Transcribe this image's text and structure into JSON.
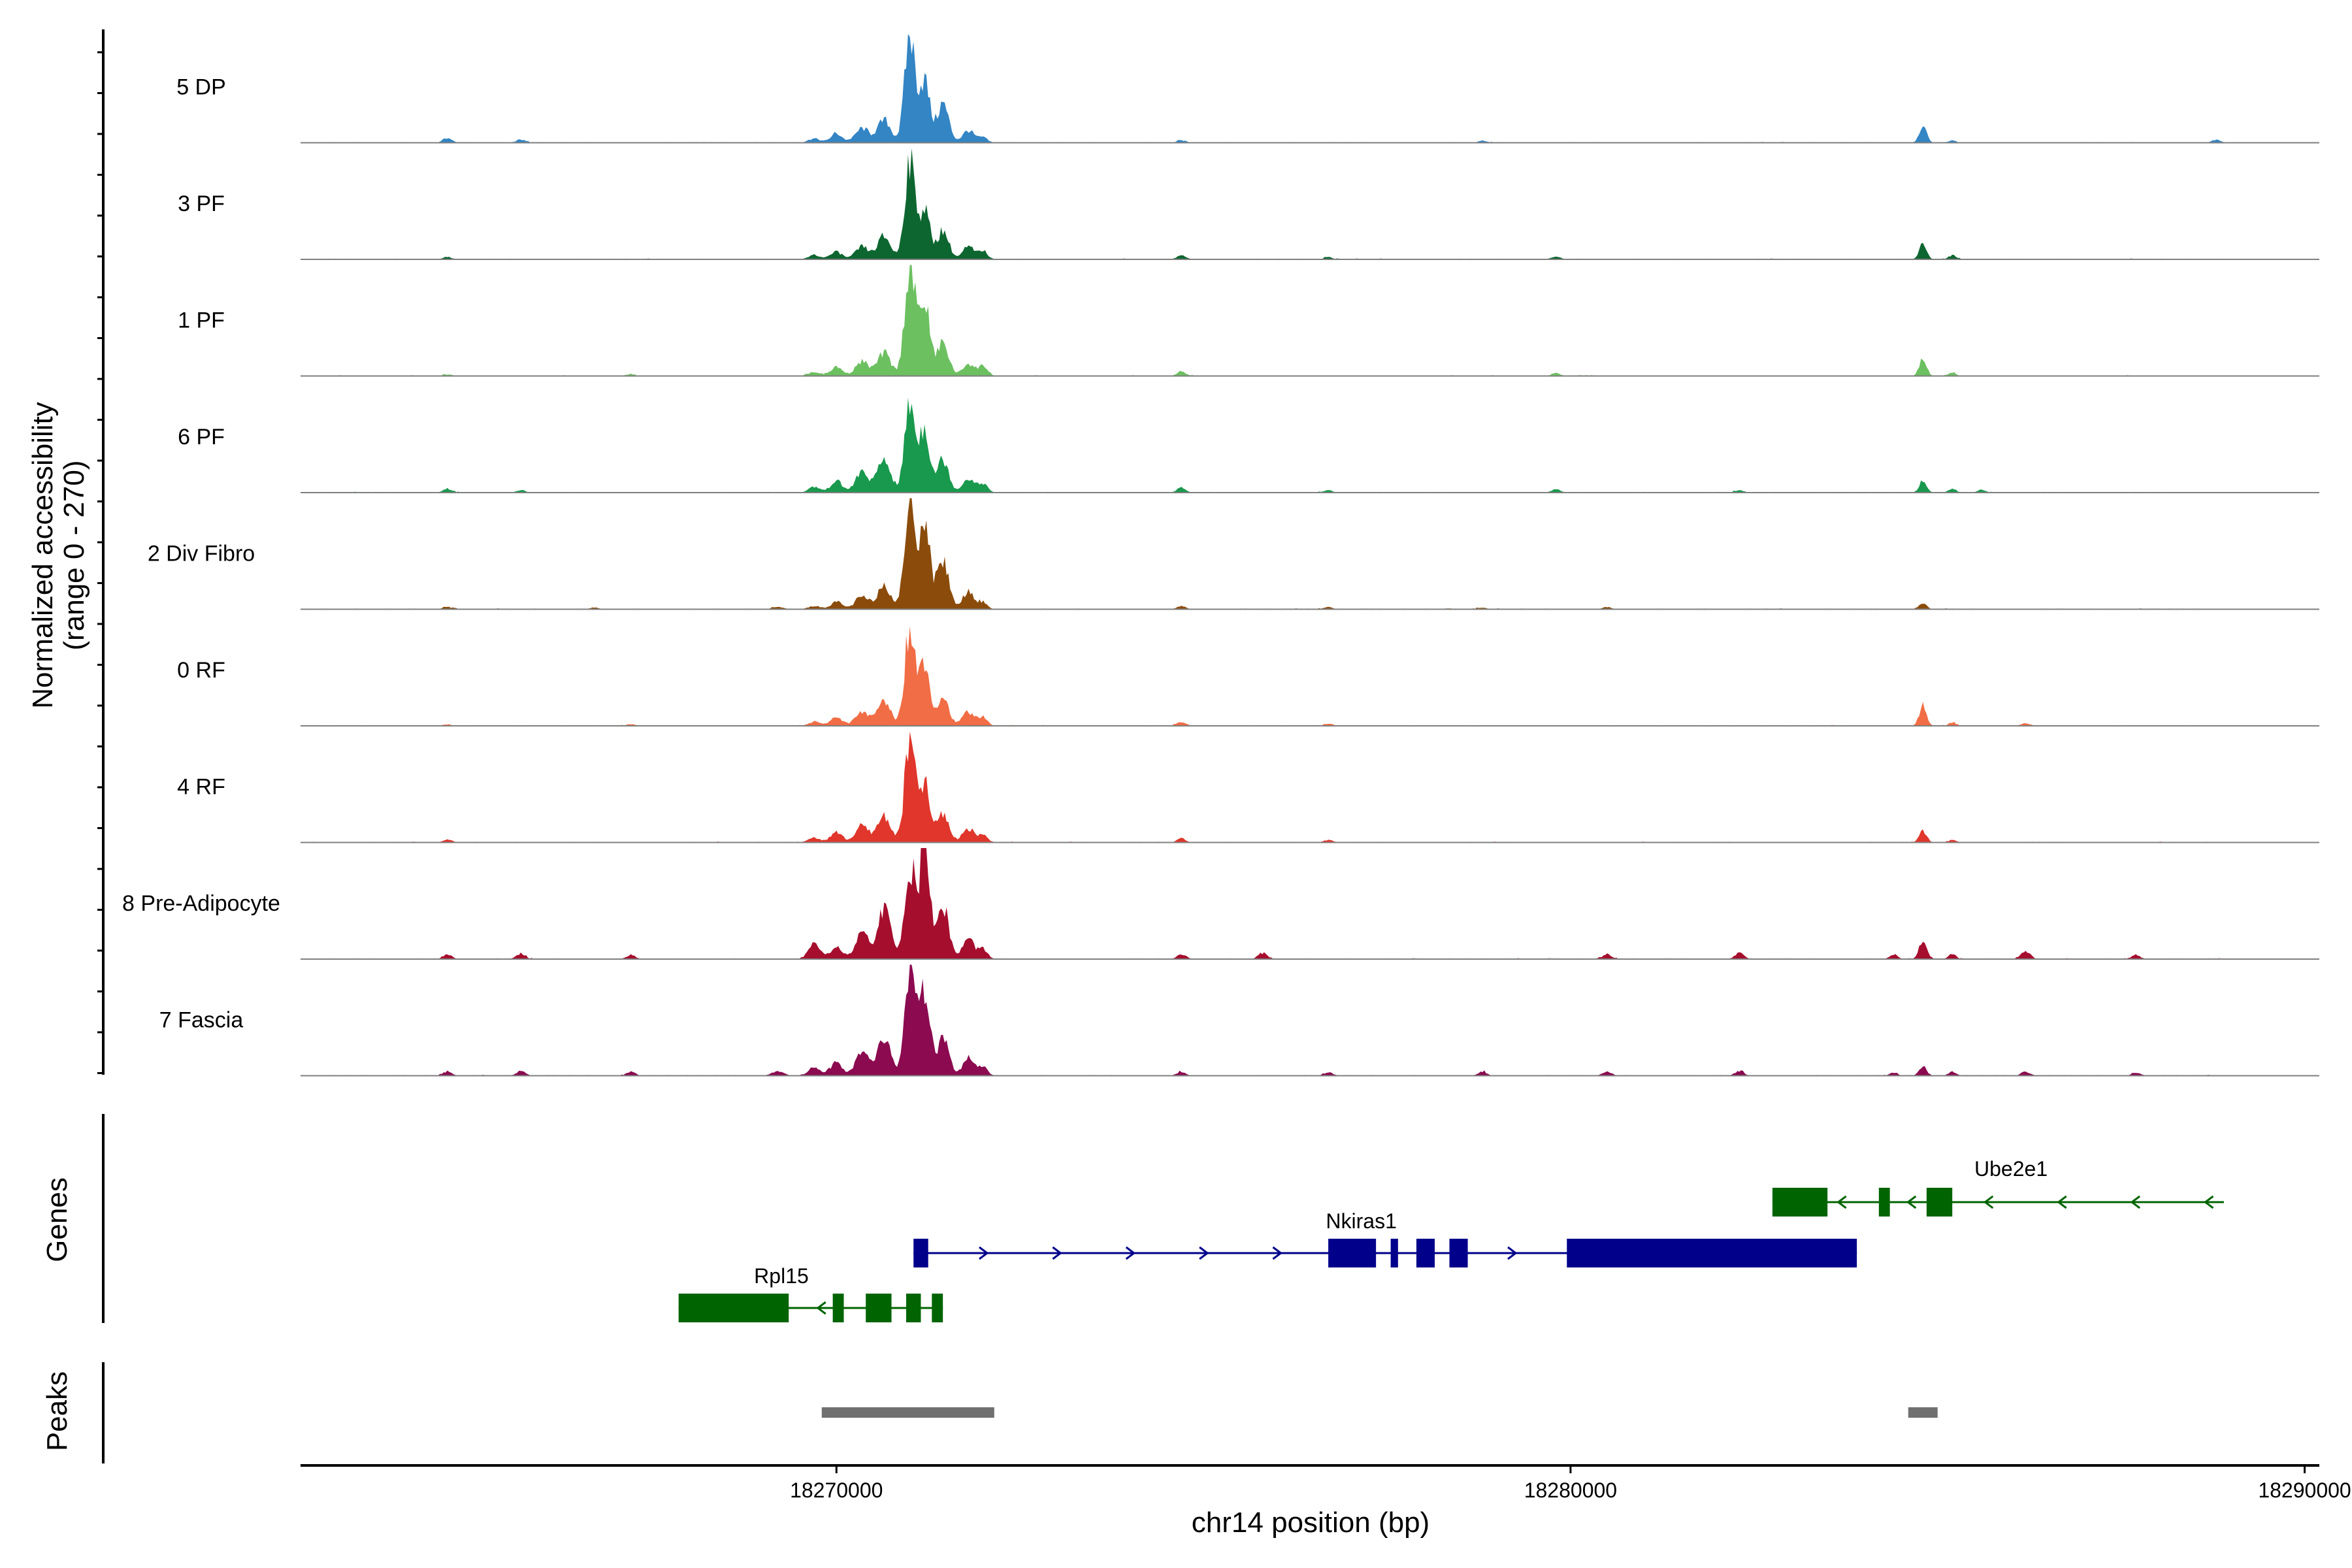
{
  "chart_data": {
    "type": "area",
    "title": "",
    "region": {
      "chrom": "chr14",
      "start": 18262700,
      "end": 18290200
    },
    "xlabel": "chr14 position (bp)",
    "xticks": [
      18270000,
      18280000,
      18290000
    ],
    "xtick_labels": [
      "18270000",
      "18280000",
      "18290000"
    ],
    "ylabel_line1": "Normalized accessibility",
    "ylabel_line2": "(range 0 - 270)",
    "ylim": [
      0,
      270
    ],
    "baseline_color": "#7f7f7f",
    "series": [
      {
        "name": "5 DP",
        "color": "#3385c4",
        "peaks": [
          [
            18264700,
            12,
            60
          ],
          [
            18265700,
            8,
            60
          ],
          [
            18269700,
            10,
            80
          ],
          [
            18270000,
            22,
            80
          ],
          [
            18270350,
            35,
            90
          ],
          [
            18270650,
            55,
            90
          ],
          [
            18271000,
            260,
            70
          ],
          [
            18271200,
            150,
            70
          ],
          [
            18271450,
            95,
            80
          ],
          [
            18271800,
            30,
            80
          ],
          [
            18272000,
            12,
            60
          ],
          [
            18274700,
            6,
            60
          ],
          [
            18278800,
            5,
            60
          ],
          [
            18284800,
            38,
            50
          ],
          [
            18285200,
            6,
            50
          ],
          [
            18288800,
            7,
            60
          ]
        ]
      },
      {
        "name": "3 PF",
        "color": "#0d6630",
        "peaks": [
          [
            18264700,
            6,
            60
          ],
          [
            18269700,
            10,
            80
          ],
          [
            18270000,
            18,
            80
          ],
          [
            18270350,
            30,
            90
          ],
          [
            18270650,
            55,
            90
          ],
          [
            18271000,
            240,
            70
          ],
          [
            18271200,
            120,
            70
          ],
          [
            18271450,
            70,
            80
          ],
          [
            18271800,
            30,
            80
          ],
          [
            18272000,
            20,
            60
          ],
          [
            18274700,
            10,
            60
          ],
          [
            18276700,
            5,
            60
          ],
          [
            18279800,
            7,
            60
          ],
          [
            18284800,
            38,
            50
          ],
          [
            18285200,
            10,
            50
          ]
        ]
      },
      {
        "name": "1 PF",
        "color": "#6cc060",
        "peaks": [
          [
            18264700,
            4,
            60
          ],
          [
            18267200,
            5,
            60
          ],
          [
            18269700,
            10,
            80
          ],
          [
            18270000,
            22,
            80
          ],
          [
            18270350,
            35,
            90
          ],
          [
            18270650,
            55,
            90
          ],
          [
            18271000,
            270,
            70
          ],
          [
            18271200,
            180,
            70
          ],
          [
            18271450,
            80,
            80
          ],
          [
            18271800,
            30,
            80
          ],
          [
            18272000,
            25,
            60
          ],
          [
            18274700,
            12,
            60
          ],
          [
            18279800,
            7,
            60
          ],
          [
            18284800,
            42,
            50
          ],
          [
            18285200,
            8,
            50
          ]
        ]
      },
      {
        "name": "6 PF",
        "color": "#19994d",
        "peaks": [
          [
            18264700,
            10,
            60
          ],
          [
            18265700,
            6,
            60
          ],
          [
            18269700,
            14,
            80
          ],
          [
            18270000,
            28,
            80
          ],
          [
            18270350,
            50,
            90
          ],
          [
            18270650,
            80,
            90
          ],
          [
            18271000,
            215,
            70
          ],
          [
            18271200,
            160,
            70
          ],
          [
            18271450,
            80,
            80
          ],
          [
            18271800,
            35,
            80
          ],
          [
            18272000,
            22,
            60
          ],
          [
            18274700,
            12,
            60
          ],
          [
            18276700,
            6,
            60
          ],
          [
            18279800,
            8,
            60
          ],
          [
            18282300,
            6,
            60
          ],
          [
            18284800,
            28,
            50
          ],
          [
            18285200,
            10,
            50
          ],
          [
            18285600,
            8,
            50
          ]
        ]
      },
      {
        "name": "2 Div Fibro",
        "color": "#8b4c0b",
        "peaks": [
          [
            18264700,
            5,
            60
          ],
          [
            18266700,
            4,
            60
          ],
          [
            18269200,
            5,
            80
          ],
          [
            18269700,
            8,
            80
          ],
          [
            18270000,
            18,
            80
          ],
          [
            18270350,
            30,
            90
          ],
          [
            18270650,
            60,
            90
          ],
          [
            18271000,
            270,
            70
          ],
          [
            18271200,
            220,
            70
          ],
          [
            18271450,
            120,
            80
          ],
          [
            18271800,
            45,
            80
          ],
          [
            18272000,
            15,
            60
          ],
          [
            18274700,
            8,
            60
          ],
          [
            18276700,
            5,
            60
          ],
          [
            18278800,
            4,
            60
          ],
          [
            18280500,
            5,
            60
          ],
          [
            18284800,
            14,
            50
          ]
        ]
      },
      {
        "name": "0 RF",
        "color": "#f16d45",
        "peaks": [
          [
            18264700,
            4,
            60
          ],
          [
            18267200,
            4,
            60
          ],
          [
            18269700,
            10,
            80
          ],
          [
            18270000,
            22,
            80
          ],
          [
            18270350,
            35,
            90
          ],
          [
            18270650,
            60,
            90
          ],
          [
            18271000,
            240,
            70
          ],
          [
            18271200,
            160,
            70
          ],
          [
            18271450,
            70,
            80
          ],
          [
            18271800,
            35,
            80
          ],
          [
            18272000,
            20,
            60
          ],
          [
            18274700,
            10,
            60
          ],
          [
            18276700,
            5,
            60
          ],
          [
            18284800,
            50,
            50
          ],
          [
            18285200,
            8,
            50
          ],
          [
            18286200,
            6,
            60
          ]
        ]
      },
      {
        "name": "4 RF",
        "color": "#e0362b",
        "peaks": [
          [
            18264700,
            8,
            60
          ],
          [
            18269700,
            12,
            80
          ],
          [
            18270000,
            25,
            80
          ],
          [
            18270350,
            40,
            90
          ],
          [
            18270650,
            65,
            90
          ],
          [
            18271000,
            245,
            70
          ],
          [
            18271200,
            140,
            70
          ],
          [
            18271450,
            70,
            80
          ],
          [
            18271800,
            35,
            80
          ],
          [
            18272000,
            18,
            60
          ],
          [
            18274700,
            10,
            60
          ],
          [
            18276700,
            6,
            60
          ],
          [
            18284800,
            28,
            50
          ],
          [
            18285200,
            6,
            50
          ]
        ]
      },
      {
        "name": "8 Pre-Adipocyte",
        "color": "#a60e2e",
        "peaks": [
          [
            18264700,
            12,
            60
          ],
          [
            18265700,
            14,
            60
          ],
          [
            18267200,
            10,
            60
          ],
          [
            18269700,
            35,
            80
          ],
          [
            18270000,
            30,
            80
          ],
          [
            18270350,
            60,
            90
          ],
          [
            18270650,
            120,
            90
          ],
          [
            18271000,
            230,
            70
          ],
          [
            18271200,
            270,
            70
          ],
          [
            18271450,
            130,
            80
          ],
          [
            18271800,
            50,
            80
          ],
          [
            18272000,
            22,
            60
          ],
          [
            18274700,
            12,
            60
          ],
          [
            18275800,
            15,
            60
          ],
          [
            18280500,
            12,
            60
          ],
          [
            18282300,
            14,
            60
          ],
          [
            18284400,
            12,
            50
          ],
          [
            18284800,
            45,
            50
          ],
          [
            18285200,
            12,
            50
          ],
          [
            18286200,
            20,
            60
          ],
          [
            18287700,
            10,
            60
          ]
        ]
      },
      {
        "name": "7 Fascia",
        "color": "#8b0a50",
        "peaks": [
          [
            18264700,
            10,
            60
          ],
          [
            18265700,
            12,
            60
          ],
          [
            18267200,
            10,
            60
          ],
          [
            18269200,
            10,
            80
          ],
          [
            18269700,
            18,
            80
          ],
          [
            18270000,
            32,
            80
          ],
          [
            18270350,
            55,
            90
          ],
          [
            18270650,
            90,
            90
          ],
          [
            18271000,
            260,
            70
          ],
          [
            18271200,
            200,
            70
          ],
          [
            18271450,
            90,
            80
          ],
          [
            18271800,
            40,
            80
          ],
          [
            18272000,
            20,
            60
          ],
          [
            18274700,
            10,
            60
          ],
          [
            18276700,
            8,
            60
          ],
          [
            18278800,
            10,
            60
          ],
          [
            18280500,
            10,
            60
          ],
          [
            18282300,
            12,
            60
          ],
          [
            18284400,
            8,
            50
          ],
          [
            18284800,
            22,
            50
          ],
          [
            18285200,
            10,
            50
          ],
          [
            18286200,
            10,
            60
          ],
          [
            18287700,
            8,
            60
          ]
        ]
      }
    ],
    "genes": [
      {
        "name": "Ube2e1",
        "strand": "-",
        "color": "#006400",
        "start": 18282750,
        "end": 18288900,
        "exons": [
          [
            18282750,
            18283500
          ],
          [
            18284200,
            18284350
          ],
          [
            18284850,
            18285200
          ]
        ],
        "arrows": [
          18283700,
          18284650,
          18285700,
          18286700,
          18287700,
          18288700
        ]
      },
      {
        "name": "Nkiras1",
        "strand": "+",
        "color": "#00008b",
        "start": 18271050,
        "end": 18283900,
        "exons": [
          [
            18271050,
            18271250
          ],
          [
            18276700,
            18277350
          ],
          [
            18277550,
            18277650
          ],
          [
            18277900,
            18278150
          ],
          [
            18278350,
            18278600
          ],
          [
            18279950,
            18283900
          ]
        ],
        "arrows": [
          18272000,
          18273000,
          18274000,
          18275000,
          18276000,
          18279200
        ]
      },
      {
        "name": "Rpl15",
        "strand": "-",
        "color": "#006400",
        "start": 18267850,
        "end": 18271450,
        "exons": [
          [
            18267850,
            18269350
          ],
          [
            18269950,
            18270100
          ],
          [
            18270400,
            18270750
          ],
          [
            18270950,
            18271150
          ],
          [
            18271300,
            18271450
          ]
        ],
        "arrows": [
          18269800
        ]
      }
    ],
    "peaks_track": [
      [
        18269800,
        18272150
      ],
      [
        18284600,
        18285000
      ]
    ],
    "peak_color": "#707070",
    "track_labels": {
      "genes": "Genes",
      "peaks": "Peaks"
    }
  }
}
